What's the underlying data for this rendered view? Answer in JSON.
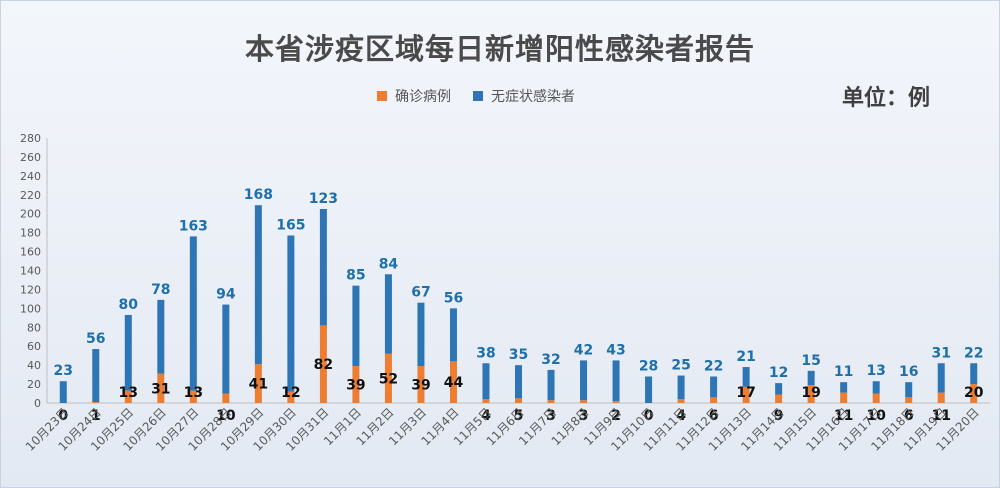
{
  "chart_data": {
    "type": "bar",
    "title": "本省涉疫区域每日新增阳性感染者报告",
    "unit_label": "单位：例",
    "stacked": true,
    "legend_position": "top-center",
    "grid": false,
    "ylim": [
      0,
      280
    ],
    "yticks": [
      0,
      20,
      40,
      60,
      80,
      100,
      120,
      140,
      160,
      180,
      200,
      220,
      240,
      260,
      280
    ],
    "categories": [
      "10月23日",
      "10月24日",
      "10月25日",
      "10月26日",
      "10月27日",
      "10月28日",
      "10月29日",
      "10月30日",
      "10月31日",
      "11月1日",
      "11月2日",
      "11月3日",
      "11月4日",
      "11月5日",
      "11月6日",
      "11月7日",
      "11月8日",
      "11月9日",
      "11月10日",
      "11月11日",
      "11月12日",
      "11月13日",
      "11月14日",
      "11月15日",
      "11月16日",
      "11月17日",
      "11月18日",
      "11月19日",
      "11月20日"
    ],
    "series": [
      {
        "name": "确诊病例",
        "color": "#ed7d31",
        "values": [
          0,
          1,
          13,
          31,
          13,
          10,
          41,
          12,
          82,
          39,
          52,
          39,
          44,
          4,
          5,
          3,
          3,
          2,
          0,
          4,
          6,
          17,
          9,
          19,
          11,
          10,
          6,
          11,
          20
        ]
      },
      {
        "name": "无症状感染者",
        "color": "#2e75b6",
        "values": [
          23,
          56,
          80,
          78,
          163,
          94,
          168,
          165,
          123,
          85,
          84,
          67,
          56,
          38,
          35,
          32,
          42,
          43,
          28,
          25,
          22,
          21,
          12,
          15,
          11,
          13,
          16,
          31,
          22
        ]
      }
    ]
  }
}
